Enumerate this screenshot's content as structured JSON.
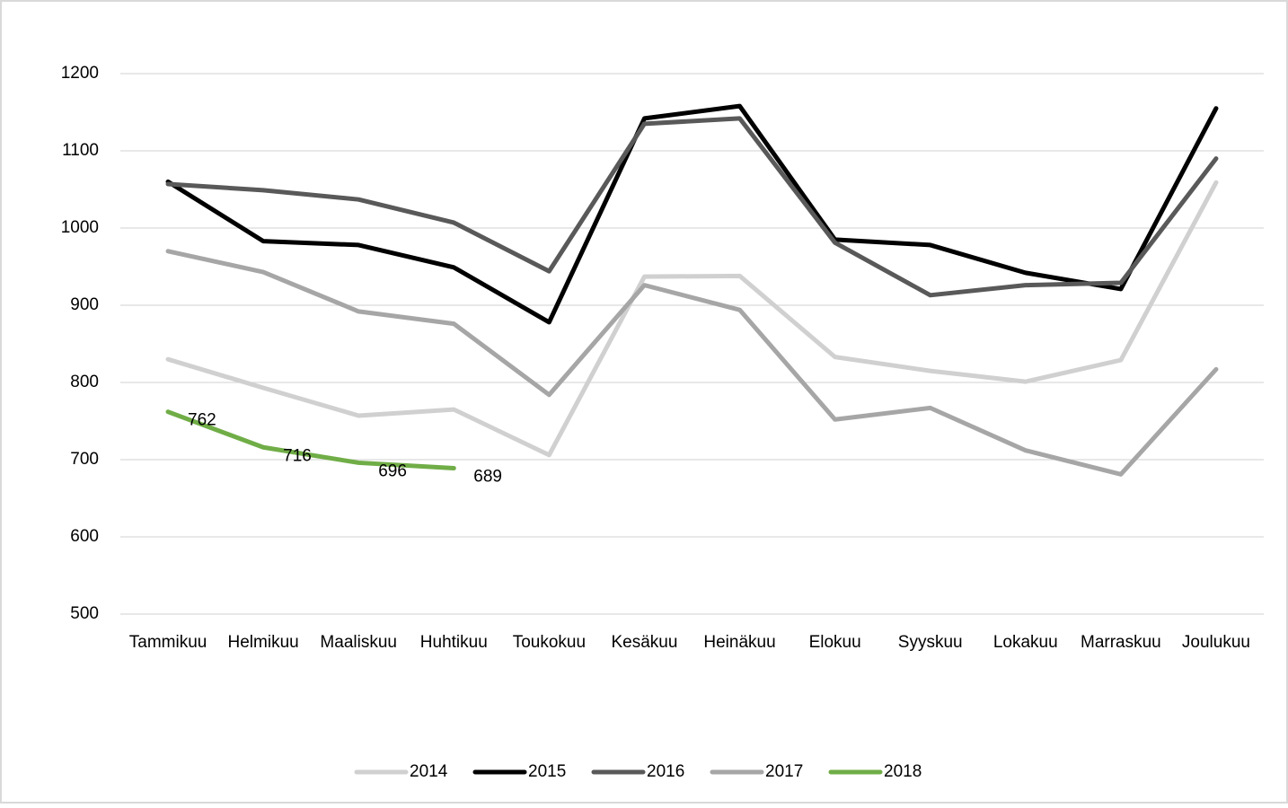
{
  "chart_data": {
    "type": "line",
    "categories": [
      "Tammikuu",
      "Helmikuu",
      "Maaliskuu",
      "Huhtikuu",
      "Toukokuu",
      "Kesäkuu",
      "Heinäkuu",
      "Elokuu",
      "Syyskuu",
      "Lokakuu",
      "Marraskuu",
      "Joulukuu"
    ],
    "series": [
      {
        "name": "2014",
        "color": "#d0d0d0",
        "values": [
          830,
          793,
          757,
          765,
          706,
          937,
          938,
          833,
          815,
          801,
          829,
          1059
        ]
      },
      {
        "name": "2015",
        "color": "#000000",
        "values": [
          1060,
          983,
          978,
          949,
          878,
          1142,
          1158,
          985,
          978,
          942,
          921,
          1155
        ]
      },
      {
        "name": "2016",
        "color": "#595959",
        "values": [
          1057,
          1049,
          1037,
          1007,
          944,
          1135,
          1142,
          981,
          913,
          926,
          929,
          1090
        ]
      },
      {
        "name": "2017",
        "color": "#a6a6a6",
        "values": [
          970,
          943,
          892,
          876,
          784,
          926,
          894,
          752,
          767,
          712,
          681,
          817
        ]
      },
      {
        "name": "2018",
        "color": "#70ad47",
        "values": [
          762,
          716,
          696,
          689,
          null,
          null,
          null,
          null,
          null,
          null,
          null,
          null
        ]
      }
    ],
    "ylim": [
      500,
      1200
    ],
    "yticks": [
      500,
      600,
      700,
      800,
      900,
      1000,
      1100,
      1200
    ],
    "grid": true,
    "legend": "bottom"
  }
}
